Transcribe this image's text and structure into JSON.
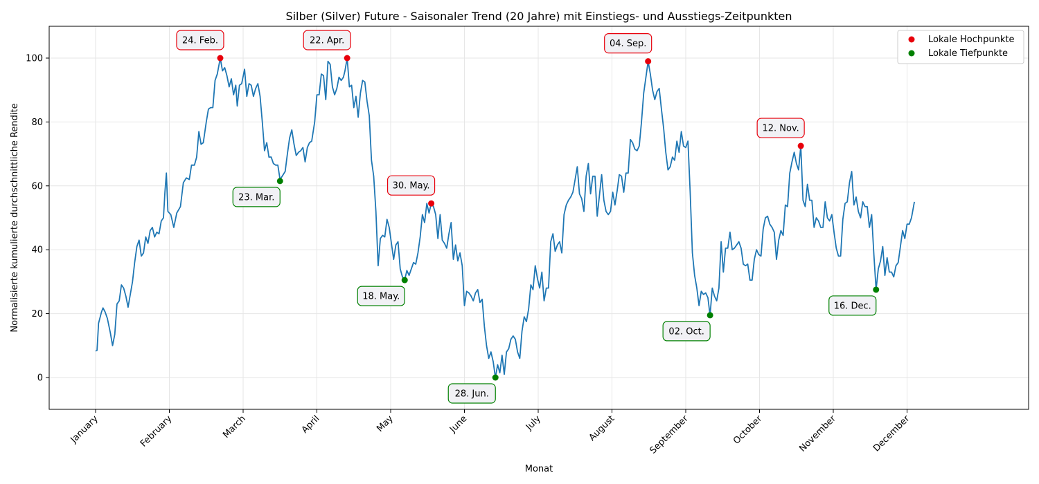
{
  "chart_data": {
    "type": "line",
    "title": "Silber (Silver) Future - Saisonaler Trend (20 Jahre) mit Einstiegs- und Ausstiegs-Zeitpunkten",
    "xlabel": "Monat",
    "ylabel": "Normalisierte kumulierte durchschnittliche Rendite",
    "ylim": [
      -10,
      110
    ],
    "yticks": [
      0,
      20,
      40,
      60,
      80,
      100
    ],
    "xlim": [
      -0.3,
      12.5
    ],
    "xticks": [
      0,
      1,
      2,
      3,
      4,
      5,
      6,
      7,
      8,
      9,
      10,
      11
    ],
    "xticklabels": [
      "January",
      "February",
      "March",
      "April",
      "May",
      "June",
      "July",
      "August",
      "September",
      "October",
      "November",
      "December"
    ],
    "grid": true,
    "colors": {
      "line": "#1f77b4",
      "peak": "#e8000b",
      "trough": "#008000",
      "peak_border": "#e8000b",
      "trough_border": "#008000",
      "box_fill": "#f1f1f5"
    },
    "legend": {
      "position": "top-right",
      "entries": [
        "Lokale Hochpunkte",
        "Lokale Tiefpunkte"
      ]
    },
    "series_keypoints": [
      [
        0.0,
        8.3
      ],
      [
        0.02,
        8.5
      ],
      [
        0.04,
        17
      ],
      [
        0.08,
        20.5
      ],
      [
        0.1,
        21.8
      ],
      [
        0.13,
        20.5
      ],
      [
        0.16,
        18.5
      ],
      [
        0.2,
        14
      ],
      [
        0.23,
        10
      ],
      [
        0.26,
        13.5
      ],
      [
        0.29,
        23
      ],
      [
        0.32,
        24
      ],
      [
        0.35,
        29
      ],
      [
        0.38,
        28
      ],
      [
        0.41,
        25.5
      ],
      [
        0.44,
        22
      ],
      [
        0.47,
        26
      ],
      [
        0.5,
        30
      ],
      [
        0.53,
        36
      ],
      [
        0.56,
        41
      ],
      [
        0.59,
        43
      ],
      [
        0.62,
        38
      ],
      [
        0.65,
        39
      ],
      [
        0.68,
        44
      ],
      [
        0.71,
        42
      ],
      [
        0.74,
        46
      ],
      [
        0.77,
        47
      ],
      [
        0.8,
        44
      ],
      [
        0.83,
        45.5
      ],
      [
        0.86,
        45
      ],
      [
        0.89,
        49
      ],
      [
        0.92,
        50
      ],
      [
        0.94,
        58
      ],
      [
        0.96,
        64
      ],
      [
        0.98,
        52
      ],
      [
        1.02,
        51
      ],
      [
        1.06,
        47
      ],
      [
        1.1,
        51.5
      ],
      [
        1.15,
        53.5
      ],
      [
        1.19,
        61
      ],
      [
        1.23,
        62.5
      ],
      [
        1.27,
        62
      ],
      [
        1.3,
        66.5
      ],
      [
        1.34,
        66.5
      ],
      [
        1.37,
        69
      ],
      [
        1.4,
        77
      ],
      [
        1.43,
        73
      ],
      [
        1.46,
        73.5
      ],
      [
        1.5,
        80
      ],
      [
        1.53,
        84
      ],
      [
        1.56,
        84.5
      ],
      [
        1.59,
        84.5
      ],
      [
        1.62,
        93
      ],
      [
        1.65,
        95
      ],
      [
        1.69,
        100
      ],
      [
        1.72,
        96
      ],
      [
        1.75,
        97
      ],
      [
        1.78,
        94.5
      ],
      [
        1.81,
        91
      ],
      [
        1.84,
        93.5
      ],
      [
        1.87,
        88.5
      ],
      [
        1.9,
        91.5
      ],
      [
        1.92,
        85
      ],
      [
        1.95,
        91.5
      ],
      [
        1.98,
        92
      ],
      [
        2.02,
        96.5
      ],
      [
        2.05,
        88
      ],
      [
        2.08,
        92
      ],
      [
        2.11,
        91.5
      ],
      [
        2.14,
        88
      ],
      [
        2.17,
        90.5
      ],
      [
        2.2,
        92
      ],
      [
        2.23,
        88
      ],
      [
        2.26,
        80
      ],
      [
        2.29,
        71
      ],
      [
        2.32,
        73.5
      ],
      [
        2.35,
        69
      ],
      [
        2.38,
        69
      ],
      [
        2.41,
        67
      ],
      [
        2.44,
        66.5
      ],
      [
        2.47,
        66.5
      ],
      [
        2.5,
        62
      ],
      [
        2.53,
        63
      ],
      [
        2.57,
        64.5
      ],
      [
        2.6,
        70
      ],
      [
        2.63,
        75
      ],
      [
        2.66,
        77.5
      ],
      [
        2.69,
        73
      ],
      [
        2.72,
        69.5
      ],
      [
        2.75,
        70.5
      ],
      [
        2.78,
        71
      ],
      [
        2.81,
        72
      ],
      [
        2.84,
        67.5
      ],
      [
        2.87,
        72
      ],
      [
        2.9,
        73.5
      ],
      [
        2.93,
        74
      ],
      [
        2.97,
        80
      ],
      [
        3.0,
        88.5
      ],
      [
        3.03,
        88.5
      ],
      [
        3.06,
        95
      ],
      [
        3.09,
        94.5
      ],
      [
        3.12,
        87
      ],
      [
        3.15,
        99
      ],
      [
        3.18,
        98
      ],
      [
        3.21,
        91
      ],
      [
        3.24,
        88.5
      ],
      [
        3.27,
        90.5
      ],
      [
        3.3,
        94
      ],
      [
        3.33,
        93
      ],
      [
        3.36,
        94
      ],
      [
        3.38,
        96
      ],
      [
        3.41,
        100
      ],
      [
        3.44,
        91
      ],
      [
        3.47,
        91.5
      ],
      [
        3.5,
        84.5
      ],
      [
        3.53,
        88
      ],
      [
        3.56,
        81.5
      ],
      [
        3.59,
        89
      ],
      [
        3.62,
        93
      ],
      [
        3.65,
        92.5
      ],
      [
        3.68,
        86.5
      ],
      [
        3.71,
        82
      ],
      [
        3.74,
        68
      ],
      [
        3.77,
        63
      ],
      [
        3.8,
        52
      ],
      [
        3.83,
        35
      ],
      [
        3.86,
        43.5
      ],
      [
        3.89,
        44.5
      ],
      [
        3.92,
        44
      ],
      [
        3.95,
        49.5
      ],
      [
        3.98,
        47
      ],
      [
        4.01,
        42
      ],
      [
        4.04,
        37
      ],
      [
        4.07,
        41.5
      ],
      [
        4.1,
        42.5
      ],
      [
        4.13,
        34
      ],
      [
        4.16,
        31.5
      ],
      [
        4.19,
        30.5
      ],
      [
        4.22,
        33.5
      ],
      [
        4.25,
        32
      ],
      [
        4.28,
        34
      ],
      [
        4.31,
        36
      ],
      [
        4.34,
        35.5
      ],
      [
        4.37,
        39
      ],
      [
        4.4,
        44
      ],
      [
        4.43,
        51
      ],
      [
        4.46,
        48.5
      ],
      [
        4.49,
        54.5
      ],
      [
        4.52,
        51.5
      ],
      [
        4.55,
        54.5
      ],
      [
        4.58,
        53.5
      ],
      [
        4.61,
        51
      ],
      [
        4.64,
        43.5
      ],
      [
        4.67,
        51
      ],
      [
        4.7,
        43
      ],
      [
        4.73,
        42
      ],
      [
        4.76,
        40.5
      ],
      [
        4.79,
        45
      ],
      [
        4.82,
        48.5
      ],
      [
        4.85,
        37
      ],
      [
        4.88,
        41.5
      ],
      [
        4.91,
        36.5
      ],
      [
        4.94,
        39
      ],
      [
        4.97,
        35
      ],
      [
        5.0,
        22.5
      ],
      [
        5.03,
        27
      ],
      [
        5.06,
        26.5
      ],
      [
        5.09,
        25.5
      ],
      [
        5.12,
        24
      ],
      [
        5.15,
        26.5
      ],
      [
        5.18,
        27.5
      ],
      [
        5.21,
        23.5
      ],
      [
        5.24,
        24.5
      ],
      [
        5.27,
        16
      ],
      [
        5.3,
        10
      ],
      [
        5.33,
        6
      ],
      [
        5.36,
        8
      ],
      [
        5.39,
        5
      ],
      [
        5.42,
        0
      ],
      [
        5.45,
        4
      ],
      [
        5.48,
        1.5
      ],
      [
        5.51,
        7
      ],
      [
        5.54,
        1
      ],
      [
        5.57,
        8
      ],
      [
        5.6,
        9
      ],
      [
        5.63,
        12
      ],
      [
        5.66,
        13
      ],
      [
        5.69,
        12
      ],
      [
        5.72,
        8
      ],
      [
        5.75,
        6
      ],
      [
        5.78,
        14.5
      ],
      [
        5.81,
        19
      ],
      [
        5.84,
        17.5
      ],
      [
        5.87,
        21.5
      ],
      [
        5.9,
        29
      ],
      [
        5.93,
        27.5
      ],
      [
        5.96,
        35
      ],
      [
        5.99,
        31
      ],
      [
        6.02,
        28
      ],
      [
        6.05,
        33
      ],
      [
        6.08,
        24
      ],
      [
        6.11,
        28
      ],
      [
        6.14,
        28
      ],
      [
        6.17,
        42.5
      ],
      [
        6.2,
        45
      ],
      [
        6.23,
        39.5
      ],
      [
        6.26,
        41.5
      ],
      [
        6.29,
        42.5
      ],
      [
        6.32,
        39
      ],
      [
        6.35,
        51
      ],
      [
        6.38,
        54
      ],
      [
        6.41,
        55.5
      ],
      [
        6.44,
        56.5
      ],
      [
        6.47,
        58
      ],
      [
        6.5,
        62
      ],
      [
        6.53,
        66
      ],
      [
        6.56,
        57.5
      ],
      [
        6.59,
        56
      ],
      [
        6.62,
        52
      ],
      [
        6.65,
        63
      ],
      [
        6.68,
        67
      ],
      [
        6.71,
        57.5
      ],
      [
        6.74,
        63
      ],
      [
        6.77,
        63
      ],
      [
        6.8,
        50.5
      ],
      [
        6.83,
        57
      ],
      [
        6.86,
        63.5
      ],
      [
        6.89,
        55.5
      ],
      [
        6.92,
        52
      ],
      [
        6.95,
        51
      ],
      [
        6.98,
        52
      ],
      [
        7.01,
        58
      ],
      [
        7.04,
        54
      ],
      [
        7.07,
        58.5
      ],
      [
        7.1,
        63.5
      ],
      [
        7.13,
        63
      ],
      [
        7.16,
        58
      ],
      [
        7.19,
        64
      ],
      [
        7.22,
        64
      ],
      [
        7.25,
        74.5
      ],
      [
        7.28,
        73.5
      ],
      [
        7.31,
        71.5
      ],
      [
        7.34,
        71
      ],
      [
        7.37,
        72.5
      ],
      [
        7.4,
        80
      ],
      [
        7.43,
        89
      ],
      [
        7.46,
        94
      ],
      [
        7.49,
        99
      ],
      [
        7.52,
        95
      ],
      [
        7.55,
        90
      ],
      [
        7.58,
        87
      ],
      [
        7.61,
        89.5
      ],
      [
        7.64,
        90.5
      ],
      [
        7.67,
        84
      ],
      [
        7.7,
        78
      ],
      [
        7.73,
        70.5
      ],
      [
        7.76,
        65
      ],
      [
        7.79,
        66
      ],
      [
        7.82,
        69
      ],
      [
        7.85,
        68
      ],
      [
        7.88,
        74
      ],
      [
        7.91,
        70.5
      ],
      [
        7.94,
        77
      ],
      [
        7.97,
        72.5
      ],
      [
        8.0,
        72
      ],
      [
        8.03,
        74
      ],
      [
        8.06,
        58
      ],
      [
        8.09,
        39
      ],
      [
        8.12,
        32
      ],
      [
        8.15,
        28
      ],
      [
        8.18,
        22.5
      ],
      [
        8.21,
        27
      ],
      [
        8.24,
        26
      ],
      [
        8.27,
        26.5
      ],
      [
        8.3,
        25
      ],
      [
        8.33,
        19.5
      ],
      [
        8.36,
        28
      ],
      [
        8.39,
        25.5
      ],
      [
        8.42,
        24
      ],
      [
        8.45,
        28
      ],
      [
        8.48,
        42.5
      ],
      [
        8.51,
        33
      ],
      [
        8.54,
        40.5
      ],
      [
        8.57,
        40.5
      ],
      [
        8.6,
        45.5
      ],
      [
        8.63,
        40
      ],
      [
        8.66,
        40.5
      ],
      [
        8.69,
        41.5
      ],
      [
        8.72,
        42.5
      ],
      [
        8.75,
        40.5
      ],
      [
        8.78,
        35.5
      ],
      [
        8.81,
        35
      ],
      [
        8.84,
        35.5
      ],
      [
        8.87,
        30.5
      ],
      [
        8.9,
        30.5
      ],
      [
        8.93,
        37
      ],
      [
        8.96,
        40
      ],
      [
        8.99,
        38.5
      ],
      [
        9.02,
        38
      ],
      [
        9.05,
        46.5
      ],
      [
        9.08,
        50
      ],
      [
        9.11,
        50.5
      ],
      [
        9.14,
        48
      ],
      [
        9.17,
        47
      ],
      [
        9.2,
        45.5
      ],
      [
        9.23,
        37
      ],
      [
        9.26,
        43
      ],
      [
        9.29,
        46
      ],
      [
        9.32,
        44.5
      ],
      [
        9.35,
        54
      ],
      [
        9.38,
        53.5
      ],
      [
        9.41,
        64
      ],
      [
        9.44,
        67.5
      ],
      [
        9.47,
        70.5
      ],
      [
        9.5,
        67
      ],
      [
        9.53,
        65
      ],
      [
        9.56,
        72.5
      ],
      [
        9.59,
        55.5
      ],
      [
        9.62,
        53.5
      ],
      [
        9.65,
        60.5
      ],
      [
        9.68,
        55.5
      ],
      [
        9.71,
        55.5
      ],
      [
        9.74,
        47
      ],
      [
        9.77,
        50
      ],
      [
        9.8,
        49
      ],
      [
        9.83,
        47
      ],
      [
        9.86,
        47
      ],
      [
        9.89,
        55
      ],
      [
        9.92,
        50
      ],
      [
        9.95,
        49
      ],
      [
        9.98,
        51
      ],
      [
        10.01,
        45.5
      ],
      [
        10.04,
        40.5
      ],
      [
        10.07,
        38
      ],
      [
        10.1,
        38
      ],
      [
        10.13,
        49.5
      ],
      [
        10.16,
        54.5
      ],
      [
        10.19,
        55
      ],
      [
        10.22,
        61
      ],
      [
        10.25,
        64.5
      ],
      [
        10.28,
        54
      ],
      [
        10.31,
        56.5
      ],
      [
        10.34,
        52
      ],
      [
        10.37,
        50
      ],
      [
        10.4,
        55
      ],
      [
        10.43,
        53.5
      ],
      [
        10.46,
        53.5
      ],
      [
        10.49,
        47
      ],
      [
        10.52,
        51
      ],
      [
        10.55,
        38.5
      ],
      [
        10.58,
        27.5
      ],
      [
        10.61,
        34
      ],
      [
        10.64,
        36.5
      ],
      [
        10.67,
        41
      ],
      [
        10.7,
        32
      ],
      [
        10.73,
        37.5
      ],
      [
        10.76,
        33
      ],
      [
        10.79,
        33
      ],
      [
        10.82,
        31.5
      ],
      [
        10.85,
        35
      ],
      [
        10.88,
        36
      ],
      [
        10.91,
        41
      ],
      [
        10.94,
        46
      ],
      [
        10.97,
        43.5
      ],
      [
        11.0,
        48
      ],
      [
        11.03,
        48
      ],
      [
        11.06,
        50
      ],
      [
        11.1,
        55
      ]
    ],
    "peaks": [
      {
        "label": "24. Feb.",
        "x": 1.69,
        "y": 100
      },
      {
        "label": "22. Apr.",
        "x": 3.41,
        "y": 100
      },
      {
        "label": "30. May.",
        "x": 4.55,
        "y": 54.5
      },
      {
        "label": "04. Sep.",
        "x": 7.49,
        "y": 99
      },
      {
        "label": "12. Nov.",
        "x": 9.56,
        "y": 72.5
      }
    ],
    "troughs": [
      {
        "label": "23. Mar.",
        "x": 2.5,
        "y": 61.5
      },
      {
        "label": "18. May.",
        "x": 4.19,
        "y": 30.5
      },
      {
        "label": "28. Jun.",
        "x": 5.42,
        "y": 0
      },
      {
        "label": "02. Oct.",
        "x": 8.33,
        "y": 19.5
      },
      {
        "label": "16. Dec.",
        "x": 10.58,
        "y": 27.5
      }
    ]
  }
}
